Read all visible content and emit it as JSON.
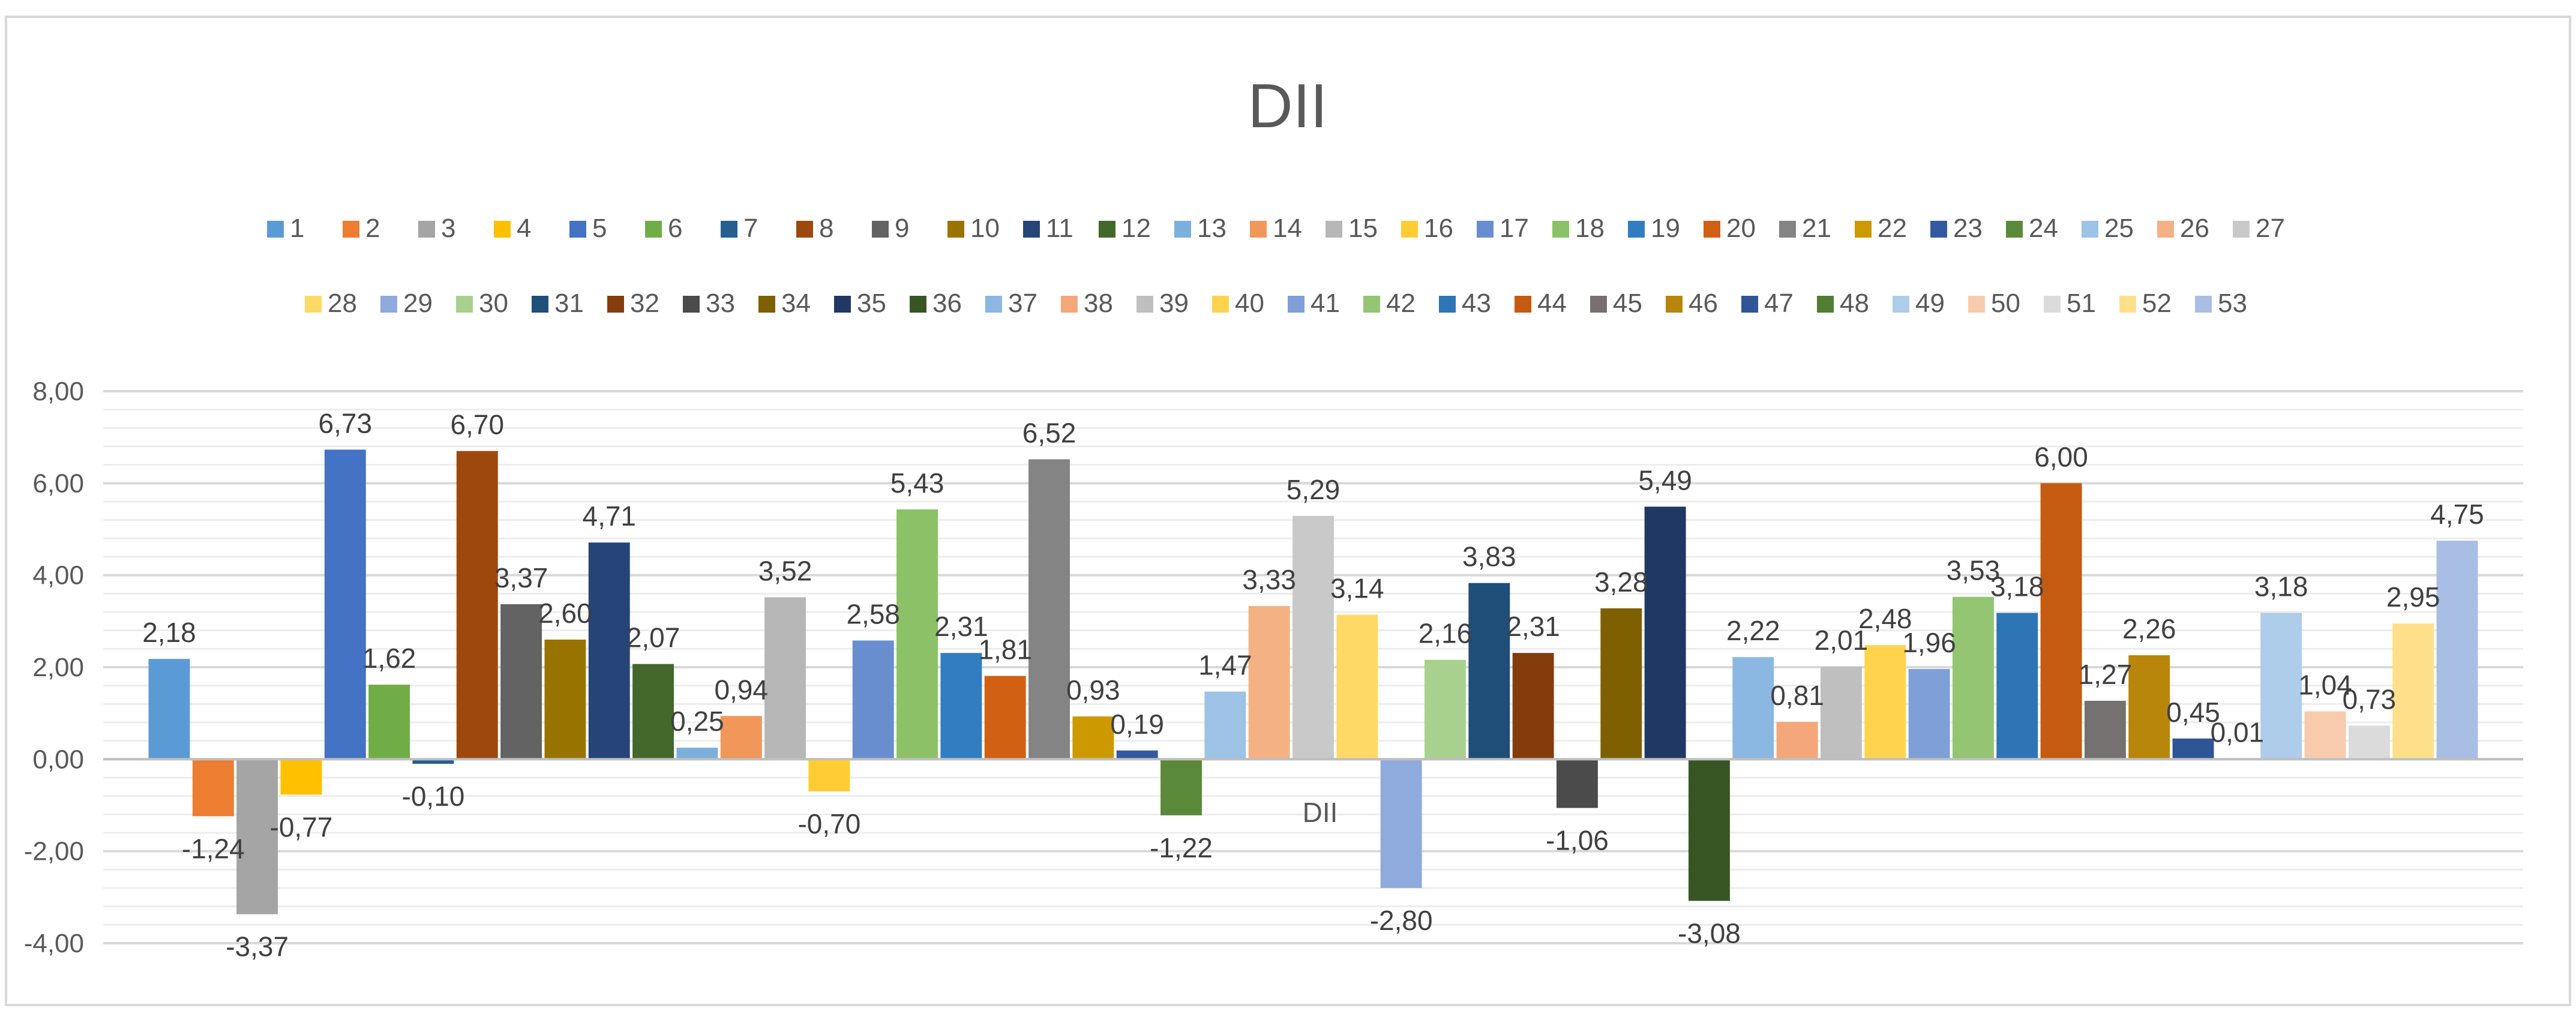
{
  "chart_data": {
    "type": "bar",
    "title": "DII",
    "xlabel": "DII",
    "ylabel": "",
    "ylim": [
      -4,
      8
    ],
    "ytick_values": [
      -4,
      -2,
      0,
      2,
      4,
      6,
      8
    ],
    "ytick_labels": [
      "-4,00",
      "-2,00",
      "0,00",
      "2,00",
      "4,00",
      "6,00",
      "8,00"
    ],
    "grid": true,
    "legend_position": "top",
    "series": [
      {
        "name": "1",
        "value": 2.18,
        "label": "2,18",
        "color": "#5B9BD5"
      },
      {
        "name": "2",
        "value": -1.24,
        "label": "-1,24",
        "color": "#ED7D31"
      },
      {
        "name": "3",
        "value": -3.37,
        "label": "-3,37",
        "color": "#A5A5A5"
      },
      {
        "name": "4",
        "value": -0.77,
        "label": "-0,77",
        "color": "#FFC000"
      },
      {
        "name": "5",
        "value": 6.73,
        "label": "6,73",
        "color": "#4472C4"
      },
      {
        "name": "6",
        "value": 1.62,
        "label": "1,62",
        "color": "#70AD47"
      },
      {
        "name": "7",
        "value": -0.1,
        "label": "-0,10",
        "color": "#255E91"
      },
      {
        "name": "8",
        "value": 6.7,
        "label": "6,70",
        "color": "#9E480E"
      },
      {
        "name": "9",
        "value": 3.37,
        "label": "3,37",
        "color": "#636363"
      },
      {
        "name": "10",
        "value": 2.6,
        "label": "2,60",
        "color": "#997300"
      },
      {
        "name": "11",
        "value": 4.71,
        "label": "4,71",
        "color": "#264478"
      },
      {
        "name": "12",
        "value": 2.07,
        "label": "2,07",
        "color": "#43682B"
      },
      {
        "name": "13",
        "value": 0.25,
        "label": "0,25",
        "color": "#7CAFDD"
      },
      {
        "name": "14",
        "value": 0.94,
        "label": "0,94",
        "color": "#F1975A"
      },
      {
        "name": "15",
        "value": 3.52,
        "label": "3,52",
        "color": "#B7B7B7"
      },
      {
        "name": "16",
        "value": -0.7,
        "label": "-0,70",
        "color": "#FFCD33"
      },
      {
        "name": "17",
        "value": 2.58,
        "label": "2,58",
        "color": "#698ED0"
      },
      {
        "name": "18",
        "value": 5.43,
        "label": "5,43",
        "color": "#8CC168"
      },
      {
        "name": "19",
        "value": 2.31,
        "label": "2,31",
        "color": "#327DC2"
      },
      {
        "name": "20",
        "value": 1.81,
        "label": "1,81",
        "color": "#D26012"
      },
      {
        "name": "21",
        "value": 6.52,
        "label": "6,52",
        "color": "#848484"
      },
      {
        "name": "22",
        "value": 0.93,
        "label": "0,93",
        "color": "#CC9A00"
      },
      {
        "name": "23",
        "value": 0.19,
        "label": "0,19",
        "color": "#335AA1"
      },
      {
        "name": "24",
        "value": -1.22,
        "label": "-1,22",
        "color": "#5A8A39"
      },
      {
        "name": "25",
        "value": 1.47,
        "label": "1,47",
        "color": "#9DC3E6"
      },
      {
        "name": "26",
        "value": 3.33,
        "label": "3,33",
        "color": "#F4B183"
      },
      {
        "name": "27",
        "value": 5.29,
        "label": "5,29",
        "color": "#C9C9C9"
      },
      {
        "name": "28",
        "value": 3.14,
        "label": "3,14",
        "color": "#FFD966"
      },
      {
        "name": "29",
        "value": -2.8,
        "label": "-2,80",
        "color": "#8FAADC"
      },
      {
        "name": "30",
        "value": 2.16,
        "label": "2,16",
        "color": "#A9D18E"
      },
      {
        "name": "31",
        "value": 3.83,
        "label": "3,83",
        "color": "#1F4E79"
      },
      {
        "name": "32",
        "value": 2.31,
        "label": "2,31",
        "color": "#843C0C"
      },
      {
        "name": "33",
        "value": -1.06,
        "label": "-1,06",
        "color": "#4B4B4B"
      },
      {
        "name": "34",
        "value": 3.28,
        "label": "3,28",
        "color": "#7F6000"
      },
      {
        "name": "35",
        "value": 5.49,
        "label": "5,49",
        "color": "#203864"
      },
      {
        "name": "36",
        "value": -3.08,
        "label": "-3,08",
        "color": "#375623"
      },
      {
        "name": "37",
        "value": 2.22,
        "label": "2,22",
        "color": "#8BB8E2"
      },
      {
        "name": "38",
        "value": 0.81,
        "label": "0,81",
        "color": "#F4A77A"
      },
      {
        "name": "39",
        "value": 2.01,
        "label": "2,01",
        "color": "#BFBFBF"
      },
      {
        "name": "40",
        "value": 2.48,
        "label": "2,48",
        "color": "#FFD34E"
      },
      {
        "name": "41",
        "value": 1.96,
        "label": "1,96",
        "color": "#7F9FD9"
      },
      {
        "name": "42",
        "value": 3.53,
        "label": "3,53",
        "color": "#93C572"
      },
      {
        "name": "43",
        "value": 3.18,
        "label": "3,18",
        "color": "#2E75B6"
      },
      {
        "name": "44",
        "value": 6.0,
        "label": "6,00",
        "color": "#C55A11"
      },
      {
        "name": "45",
        "value": 1.27,
        "label": "1,27",
        "color": "#767171"
      },
      {
        "name": "46",
        "value": 2.26,
        "label": "2,26",
        "color": "#B8860B"
      },
      {
        "name": "47",
        "value": 0.45,
        "label": "0,45",
        "color": "#2F5597"
      },
      {
        "name": "48",
        "value": 0.01,
        "label": "0,01",
        "color": "#507E32"
      },
      {
        "name": "49",
        "value": 3.18,
        "label": "3,18",
        "color": "#ADCDEA"
      },
      {
        "name": "50",
        "value": 1.04,
        "label": "1,04",
        "color": "#F8CBAD"
      },
      {
        "name": "51",
        "value": 0.73,
        "label": "0,73",
        "color": "#DBDBDB"
      },
      {
        "name": "52",
        "value": 2.95,
        "label": "2,95",
        "color": "#FFE08A"
      },
      {
        "name": "53",
        "value": 4.75,
        "label": "4,75",
        "color": "#A9BEE5"
      }
    ]
  }
}
